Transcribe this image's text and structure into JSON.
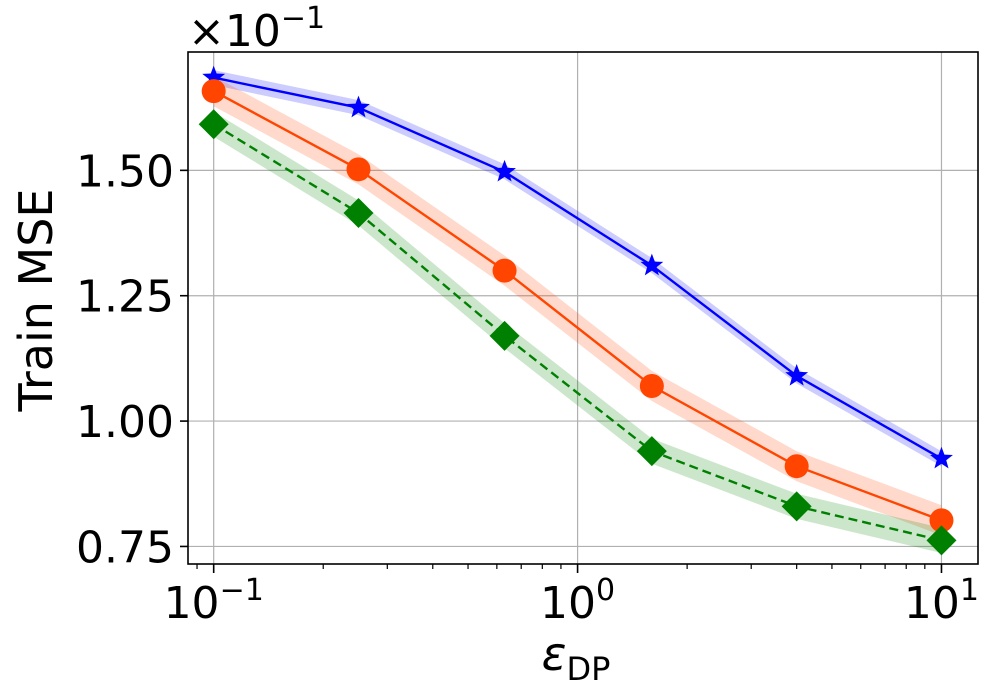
{
  "chart_data": {
    "type": "line",
    "xlabel": "ε",
    "xlabel_sub": "DP",
    "ylabel": "Train MSE",
    "x_scale": "log",
    "xlim": [
      0.085,
      12.6
    ],
    "ylim": [
      0.0715,
      0.1736
    ],
    "x_ticks": [
      {
        "value": 0.1,
        "base": "10",
        "exp": "−1"
      },
      {
        "value": 1,
        "base": "10",
        "exp": "0"
      },
      {
        "value": 10,
        "base": "10",
        "exp": "1"
      }
    ],
    "y_ticks": [
      {
        "value": 0.075,
        "label": "0.75"
      },
      {
        "value": 0.1,
        "label": "1.00"
      },
      {
        "value": 0.125,
        "label": "1.25"
      },
      {
        "value": 0.15,
        "label": "1.50"
      }
    ],
    "y_scale_factor": {
      "base": "×10",
      "exp": "−1"
    },
    "grid": true,
    "x": [
      0.1,
      0.25,
      0.63,
      1.6,
      4.0,
      10.0
    ],
    "series": [
      {
        "color": "#0000ff",
        "marker": "star",
        "dash": "solid",
        "values": [
          0.1685,
          0.1625,
          0.1497,
          0.131,
          0.109,
          0.0925
        ],
        "band": 0.0015
      },
      {
        "color": "#ff4500",
        "marker": "circle",
        "dash": "solid",
        "values": [
          0.1658,
          0.1502,
          0.13,
          0.107,
          0.091,
          0.0802
        ],
        "band": 0.003
      },
      {
        "color": "#008000",
        "marker": "diamond",
        "dash": "dashed",
        "values": [
          0.1592,
          0.1415,
          0.117,
          0.094,
          0.083,
          0.0762
        ],
        "band": 0.0025
      }
    ]
  }
}
